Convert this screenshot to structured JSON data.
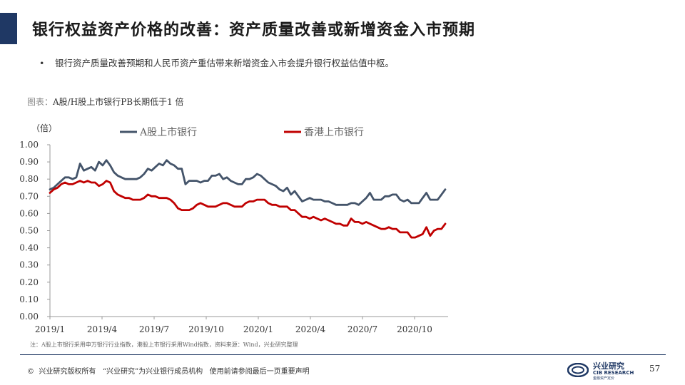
{
  "slide": {
    "title": "银行权益资产价格的改善：资产质量改善或新增资金入市预期",
    "bullet_symbol": "•",
    "bullet": "银行资产质量改善预期和人民币资产重估带来新增资金入市会提升银行权益估值中枢。",
    "caption_prefix": "图表：",
    "caption": "A股/H股上市银行PB长期低于1 倍",
    "note": "注：A股上市银行采用申万银行行业指数，港股上市银行采用Wind指数，资料来源：Wind，兴业研究整理",
    "footer": "©  兴业研究版权所有   “兴业研究”为兴业银行成员机构   使用前请参阅最后一页重要声明",
    "page_number": "57",
    "logo_cn": "兴业研究",
    "logo_en": "CIB RESEARCH",
    "logo_sub": "金融资产定价",
    "accent_color": "#1f3864"
  },
  "chart_data": {
    "type": "line",
    "title": "",
    "ylabel": "（倍）",
    "xlabel": "",
    "ylim": [
      0,
      1
    ],
    "ytick_values": [
      0,
      0.1,
      0.2,
      0.3,
      0.4,
      0.5,
      0.6,
      0.7,
      0.8,
      0.9,
      1.0
    ],
    "ytick_labels": [
      "0.00",
      "0.10",
      "0.20",
      "0.30",
      "0.40",
      "0.50",
      "0.60",
      "0.70",
      "0.80",
      "0.90",
      "1.00"
    ],
    "xtick_labels": [
      "2019/1",
      "2019/4",
      "2019/7",
      "2019/10",
      "2020/1",
      "2020/4",
      "2020/7",
      "2020/10"
    ],
    "legend_position": "top",
    "grid": false,
    "series": [
      {
        "name": "A股上市银行",
        "color": "#44546a",
        "values": [
          0.74,
          0.75,
          0.77,
          0.79,
          0.81,
          0.81,
          0.8,
          0.81,
          0.89,
          0.85,
          0.86,
          0.87,
          0.85,
          0.9,
          0.88,
          0.91,
          0.88,
          0.84,
          0.82,
          0.81,
          0.8,
          0.8,
          0.8,
          0.8,
          0.81,
          0.83,
          0.86,
          0.85,
          0.87,
          0.89,
          0.88,
          0.91,
          0.89,
          0.88,
          0.86,
          0.86,
          0.77,
          0.79,
          0.79,
          0.79,
          0.78,
          0.79,
          0.79,
          0.82,
          0.82,
          0.83,
          0.8,
          0.81,
          0.79,
          0.78,
          0.77,
          0.77,
          0.8,
          0.8,
          0.81,
          0.83,
          0.82,
          0.8,
          0.78,
          0.77,
          0.76,
          0.74,
          0.73,
          0.75,
          0.71,
          0.73,
          0.7,
          0.67,
          0.68,
          0.69,
          0.68,
          0.68,
          0.68,
          0.67,
          0.67,
          0.66,
          0.65,
          0.65,
          0.65,
          0.65,
          0.66,
          0.66,
          0.65,
          0.67,
          0.69,
          0.72,
          0.68,
          0.68,
          0.68,
          0.7,
          0.7,
          0.71,
          0.71,
          0.68,
          0.67,
          0.68,
          0.66,
          0.66,
          0.66,
          0.69,
          0.72,
          0.68,
          0.68,
          0.68,
          0.71,
          0.74
        ]
      },
      {
        "name": "香港上市银行",
        "color": "#c00000",
        "values": [
          0.72,
          0.74,
          0.75,
          0.77,
          0.78,
          0.77,
          0.77,
          0.78,
          0.79,
          0.78,
          0.79,
          0.78,
          0.78,
          0.76,
          0.77,
          0.79,
          0.78,
          0.73,
          0.71,
          0.7,
          0.69,
          0.69,
          0.68,
          0.68,
          0.68,
          0.69,
          0.71,
          0.7,
          0.7,
          0.69,
          0.69,
          0.69,
          0.68,
          0.66,
          0.63,
          0.62,
          0.62,
          0.62,
          0.63,
          0.65,
          0.66,
          0.65,
          0.64,
          0.64,
          0.64,
          0.65,
          0.66,
          0.66,
          0.65,
          0.64,
          0.64,
          0.64,
          0.66,
          0.67,
          0.67,
          0.68,
          0.68,
          0.68,
          0.66,
          0.65,
          0.65,
          0.64,
          0.64,
          0.64,
          0.62,
          0.62,
          0.6,
          0.58,
          0.58,
          0.57,
          0.58,
          0.57,
          0.56,
          0.57,
          0.56,
          0.55,
          0.54,
          0.54,
          0.53,
          0.53,
          0.57,
          0.55,
          0.55,
          0.54,
          0.55,
          0.54,
          0.53,
          0.52,
          0.51,
          0.51,
          0.52,
          0.51,
          0.51,
          0.49,
          0.49,
          0.49,
          0.46,
          0.46,
          0.47,
          0.48,
          0.52,
          0.47,
          0.5,
          0.51,
          0.51,
          0.54
        ]
      }
    ]
  }
}
